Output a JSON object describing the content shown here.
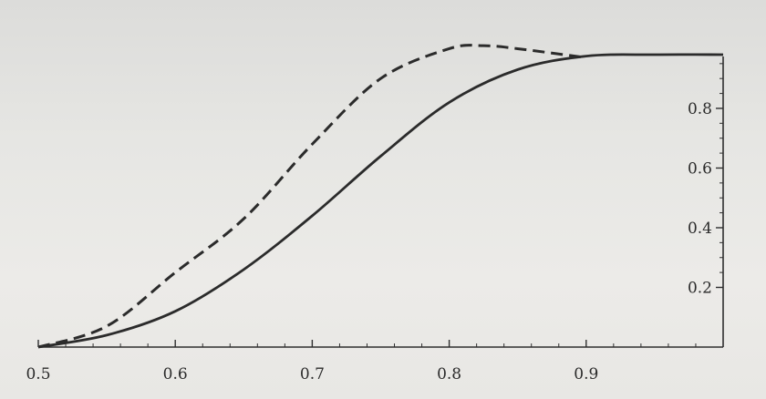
{
  "chart_data": {
    "type": "line",
    "title": "",
    "xlabel": "",
    "ylabel": "",
    "xlim": [
      0.5,
      1.0
    ],
    "ylim": [
      0,
      0.98
    ],
    "x_ticks": [
      0.5,
      0.6,
      0.7,
      0.8,
      0.9
    ],
    "x_tick_labels": [
      "0.5",
      "0.6",
      "0.7",
      "0.8",
      "0.9"
    ],
    "y_ticks": [
      0.2,
      0.4,
      0.6,
      0.8
    ],
    "y_tick_labels": [
      "0.2",
      "0.4",
      "0.6",
      "0.8"
    ],
    "y_axis_side": "right",
    "grid": false,
    "legend": "none",
    "series": [
      {
        "style": "solid",
        "color": "#2b2b2b",
        "x": [
          0.5,
          0.55,
          0.6,
          0.65,
          0.7,
          0.75,
          0.8,
          0.85,
          0.9,
          0.95,
          1.0
        ],
        "y": [
          0.0,
          0.04,
          0.12,
          0.26,
          0.44,
          0.64,
          0.82,
          0.93,
          0.975,
          0.98,
          0.98
        ]
      },
      {
        "style": "dashed",
        "color": "#2b2b2b",
        "x": [
          0.5,
          0.55,
          0.6,
          0.65,
          0.7,
          0.75,
          0.8,
          0.825,
          0.85,
          0.9
        ],
        "y": [
          0.0,
          0.07,
          0.25,
          0.43,
          0.68,
          0.9,
          1.0,
          1.01,
          1.0,
          0.97
        ]
      }
    ]
  }
}
